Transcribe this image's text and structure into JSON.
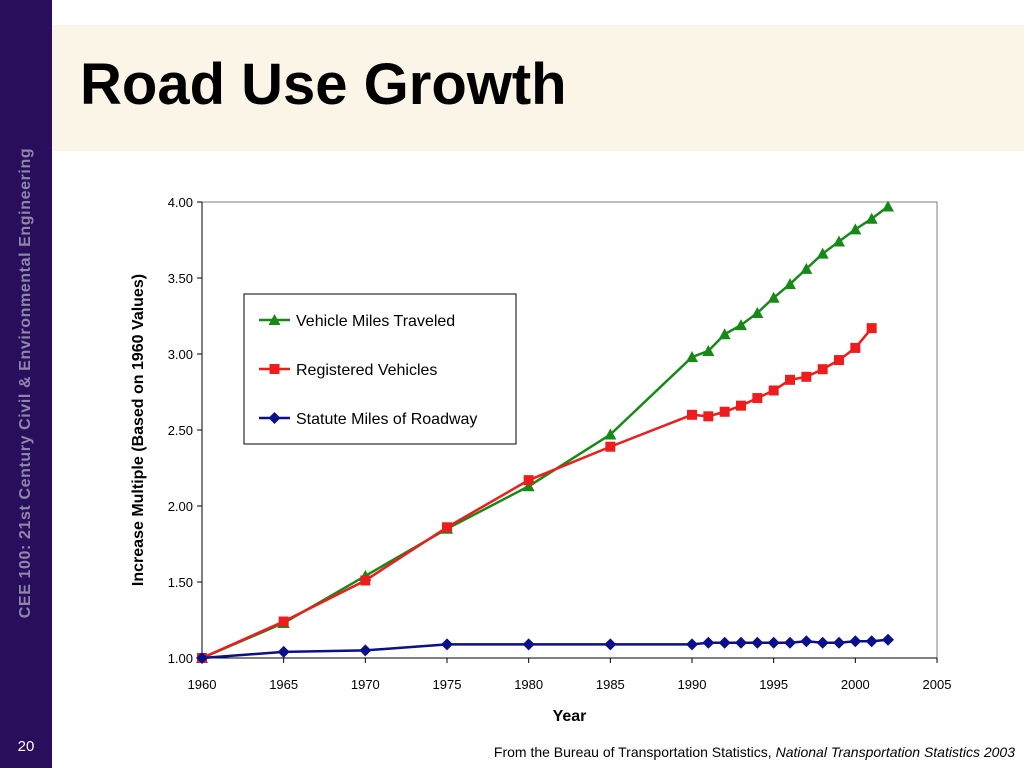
{
  "slide": {
    "title": "Road Use Growth",
    "side_label": "CEE 100: 21st Century Civil & Environmental Engineering",
    "page_number": "20",
    "source_prefix": "From the Bureau of Transportation Statistics, ",
    "source_title": "National Transportation Statistics 2003"
  },
  "colors": {
    "sidebar": "#2a0e5e",
    "title_band": "#fbf5e7"
  },
  "chart_data": {
    "type": "line",
    "xlabel": "Year",
    "ylabel": "Increase Multiple (Based on 1960 Values)",
    "xlim": [
      1960,
      2005
    ],
    "ylim": [
      1.0,
      4.0
    ],
    "x_ticks": [
      "1960",
      "1965",
      "1970",
      "1975",
      "1980",
      "1985",
      "1990",
      "1995",
      "2000",
      "2005"
    ],
    "y_ticks": [
      "1.00",
      "1.50",
      "2.00",
      "2.50",
      "3.00",
      "3.50",
      "4.00"
    ],
    "grid": false,
    "legend_position": "upper-left inside plot",
    "series": [
      {
        "name": "Vehicle Miles Traveled",
        "color": "#168a16",
        "marker": "triangle",
        "x": [
          1960,
          1965,
          1970,
          1975,
          1980,
          1985,
          1990,
          1991,
          1992,
          1993,
          1994,
          1995,
          1996,
          1997,
          1998,
          1999,
          2000,
          2001,
          2002
        ],
        "y": [
          1.0,
          1.23,
          1.54,
          1.85,
          2.13,
          2.47,
          2.98,
          3.02,
          3.13,
          3.19,
          3.27,
          3.37,
          3.46,
          3.56,
          3.66,
          3.74,
          3.82,
          3.89,
          3.97
        ]
      },
      {
        "name": "Registered Vehicles",
        "color": "#ee1c1c",
        "marker": "square",
        "x": [
          1960,
          1965,
          1970,
          1975,
          1980,
          1985,
          1990,
          1991,
          1992,
          1993,
          1994,
          1995,
          1996,
          1997,
          1998,
          1999,
          2000,
          2001
        ],
        "y": [
          1.0,
          1.24,
          1.51,
          1.86,
          2.17,
          2.39,
          2.6,
          2.59,
          2.62,
          2.66,
          2.71,
          2.76,
          2.83,
          2.85,
          2.9,
          2.96,
          3.04,
          3.17
        ]
      },
      {
        "name": "Statute Miles of Roadway",
        "color": "#0a0f8a",
        "marker": "diamond",
        "x": [
          1960,
          1965,
          1970,
          1975,
          1980,
          1985,
          1990,
          1991,
          1992,
          1993,
          1994,
          1995,
          1996,
          1997,
          1998,
          1999,
          2000,
          2001,
          2002
        ],
        "y": [
          1.0,
          1.04,
          1.05,
          1.09,
          1.09,
          1.09,
          1.09,
          1.1,
          1.1,
          1.1,
          1.1,
          1.1,
          1.1,
          1.11,
          1.1,
          1.1,
          1.11,
          1.11,
          1.12
        ]
      }
    ]
  }
}
